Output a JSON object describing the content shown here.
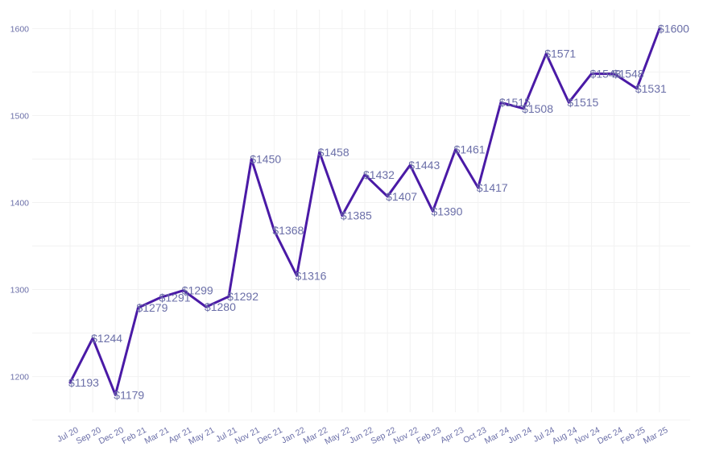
{
  "chart_data": {
    "type": "line",
    "title": "",
    "xlabel": "",
    "ylabel": "",
    "ylim": [
      1150,
      1620
    ],
    "yticks": [
      1200,
      1300,
      1400,
      1500,
      1600
    ],
    "grid": true,
    "colors": {
      "line": "#4a1aa6",
      "text": "#6b6fa8"
    },
    "points": [
      {
        "x": "Jul 20",
        "y": 1193,
        "label": "$1193"
      },
      {
        "x": "Sep 20",
        "y": 1244,
        "label": "$1244"
      },
      {
        "x": "Dec 20",
        "y": 1179,
        "label": "$1179"
      },
      {
        "x": "Feb 21",
        "y": 1279,
        "label": "$1279"
      },
      {
        "x": "Mar 21",
        "y": 1291,
        "label": "$1291"
      },
      {
        "x": "Apr 21",
        "y": 1299,
        "label": "$1299"
      },
      {
        "x": "May 21",
        "y": 1280,
        "label": "$1280"
      },
      {
        "x": "Jul 21",
        "y": 1292,
        "label": "$1292"
      },
      {
        "x": "Nov 21",
        "y": 1450,
        "label": "$1450"
      },
      {
        "x": "Dec 21",
        "y": 1368,
        "label": "$1368"
      },
      {
        "x": "Jan 22",
        "y": 1316,
        "label": "$1316"
      },
      {
        "x": "Mar 22",
        "y": 1458,
        "label": "$1458"
      },
      {
        "x": "May 22",
        "y": 1385,
        "label": "$1385"
      },
      {
        "x": "Jun 22",
        "y": 1432,
        "label": "$1432"
      },
      {
        "x": "Sep 22",
        "y": 1407,
        "label": "$1407"
      },
      {
        "x": "Nov 22",
        "y": 1443,
        "label": "$1443"
      },
      {
        "x": "Feb 23",
        "y": 1390,
        "label": "$1390"
      },
      {
        "x": "Apr 23",
        "y": 1461,
        "label": "$1461"
      },
      {
        "x": "Oct 23",
        "y": 1417,
        "label": "$1417"
      },
      {
        "x": "Mar 24",
        "y": 1515,
        "label": "$1515"
      },
      {
        "x": "Jun 24",
        "y": 1508,
        "label": "$1508"
      },
      {
        "x": "Jul 24",
        "y": 1571,
        "label": "$1571"
      },
      {
        "x": "Aug 24",
        "y": 1515,
        "label": "$1515"
      },
      {
        "x": "Nov 24",
        "y": 1548,
        "label": "$1548"
      },
      {
        "x": "Dec 24",
        "y": 1548,
        "label": "$1548"
      },
      {
        "x": "Feb 25",
        "y": 1531,
        "label": "$1531"
      },
      {
        "x": "Mar 25",
        "y": 1600,
        "label": "$1600"
      }
    ]
  }
}
